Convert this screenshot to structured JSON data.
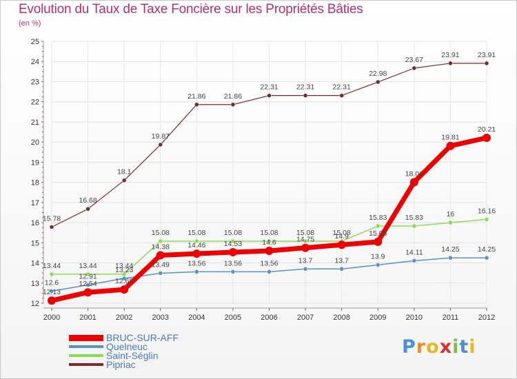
{
  "chart_data": {
    "type": "line",
    "title": "Evolution du Taux de Taxe Foncière sur les Propriétés Bâties",
    "subtitle": "(en %)",
    "xlabel": "",
    "ylabel": "",
    "ylim": [
      12,
      25
    ],
    "yticks": [
      "12",
      "13",
      "14",
      "15",
      "16",
      "17",
      "18",
      "19",
      "20",
      "21",
      "22",
      "23",
      "24",
      "25"
    ],
    "categories": [
      "2000",
      "2001",
      "2002",
      "2003",
      "2004",
      "2005",
      "2006",
      "2007",
      "2008",
      "2009",
      "2010",
      "2011",
      "2012"
    ],
    "series": [
      {
        "name": "BRUC-SUR-AFF",
        "color": "#ee0000",
        "values": [
          12.13,
          12.54,
          12.68,
          14.38,
          14.46,
          14.53,
          14.6,
          14.75,
          14.9,
          15.05,
          18.01,
          19.81,
          20.21
        ],
        "labels": [
          "12.13",
          "12.54",
          "12.68",
          "14.38",
          "14.46",
          "14.53",
          "14.6",
          "14.75",
          "14.9",
          "15.05",
          "18.01",
          "19.81",
          "20.21"
        ]
      },
      {
        "name": "Quelneuc",
        "color": "#5b8fc7",
        "values": [
          12.6,
          12.91,
          13.23,
          13.49,
          13.56,
          13.56,
          13.56,
          13.7,
          13.7,
          13.9,
          14.11,
          14.25,
          14.25
        ],
        "labels": [
          "12.6",
          "12.91",
          "13.23",
          "13.49",
          "13.56",
          "13.56",
          "13.56",
          "13.7",
          "13.7",
          "13.9",
          "14.11",
          "14.25",
          "14.25"
        ]
      },
      {
        "name": "Saint-Séglin",
        "color": "#88dd55",
        "values": [
          13.44,
          13.44,
          13.44,
          15.08,
          15.08,
          15.08,
          15.08,
          15.08,
          15.08,
          15.83,
          15.83,
          16,
          16.16
        ],
        "labels": [
          "13.44",
          "13.44",
          "13.44",
          "15.08",
          "15.08",
          "15.08",
          "15.08",
          "15.08",
          "15.08",
          "15.83",
          "15.83",
          "16",
          "16.16"
        ]
      },
      {
        "name": "Pipriac",
        "color": "#7a2a2a",
        "values": [
          15.78,
          16.68,
          18.1,
          19.87,
          21.86,
          21.86,
          22.31,
          22.31,
          22.31,
          22.98,
          23.67,
          23.91,
          23.91
        ],
        "labels": [
          "15.78",
          "16.68",
          "18.1",
          "19.87",
          "21.86",
          "21.86",
          "22.31",
          "22.31",
          "22.31",
          "22.98",
          "23.67",
          "23.91",
          "23.91"
        ]
      }
    ],
    "legend_position": "bottom-left"
  },
  "logo": {
    "text": "Proxiti",
    "letters": [
      "P",
      "r",
      "o",
      "x",
      "i",
      "t",
      "i"
    ],
    "colors": [
      "#4a90d9",
      "#f08c1e",
      "#e8b820",
      "#d9302c",
      "#7ac143",
      "#4a90d9",
      "#e8b820"
    ]
  }
}
